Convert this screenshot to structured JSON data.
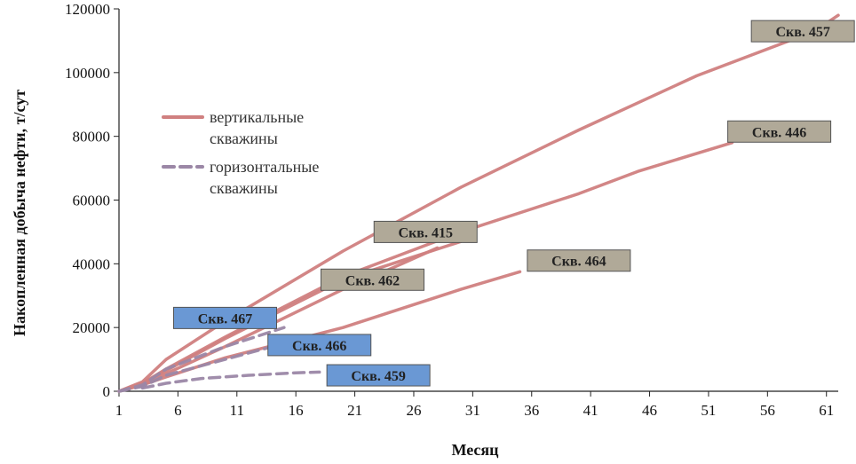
{
  "chart_data": {
    "type": "line",
    "xlabel": "Месяц",
    "ylabel": "Накопленная добыча нефти, т/сут",
    "xlim": [
      1,
      62
    ],
    "ylim": [
      0,
      120000
    ],
    "x_ticks": [
      1,
      6,
      11,
      16,
      21,
      26,
      31,
      36,
      41,
      46,
      51,
      56,
      61
    ],
    "y_ticks": [
      0,
      20000,
      40000,
      60000,
      80000,
      100000,
      120000
    ],
    "legend": {
      "placement": "upper-left",
      "entries": [
        {
          "label": "вертикальные скважины",
          "line1": "вертикальные",
          "line2": "скважины",
          "style": "solid",
          "color": "#d08080"
        },
        {
          "label": "горизонтальные скважины",
          "line1": "горизонтальные",
          "line2": "скважины",
          "style": "dashed",
          "color": "#9b87a6"
        }
      ]
    },
    "series": [
      {
        "name": "Скв. 457",
        "style": "solid",
        "color": "#d08080",
        "x": [
          1,
          3,
          5,
          10,
          20,
          30,
          40,
          50,
          60,
          62
        ],
        "y": [
          0,
          3000,
          10000,
          22000,
          44000,
          64000,
          82000,
          99000,
          113000,
          118000
        ],
        "label_box": "#b0a998",
        "label_at": [
          59,
          113000
        ]
      },
      {
        "name": "Скв. 446",
        "style": "solid",
        "color": "#d08080",
        "x": [
          1,
          3,
          5,
          10,
          20,
          30,
          40,
          45,
          53
        ],
        "y": [
          0,
          2500,
          7000,
          17000,
          36000,
          50000,
          62000,
          69000,
          78000
        ],
        "label_box": "#b0a998",
        "label_at": [
          57,
          81500
        ]
      },
      {
        "name": "Скв. 415",
        "style": "solid",
        "color": "#d08080",
        "x": [
          1,
          3,
          5,
          10,
          20,
          25,
          30
        ],
        "y": [
          0,
          2500,
          6500,
          16500,
          35000,
          41000,
          47000
        ],
        "label_box": "#b0a998",
        "label_at": [
          27,
          50000
        ]
      },
      {
        "name": "Скв. 462",
        "style": "solid",
        "color": "#d08080",
        "x": [
          1,
          3,
          5,
          10,
          15,
          20,
          25,
          28
        ],
        "y": [
          0,
          2000,
          5500,
          14000,
          23000,
          32000,
          40000,
          45000
        ],
        "label_box": "#b0a998",
        "label_at": [
          22.5,
          35000
        ]
      },
      {
        "name": "Скв. 464",
        "style": "solid",
        "color": "#d08080",
        "x": [
          1,
          3,
          5,
          10,
          20,
          30,
          35
        ],
        "y": [
          0,
          2000,
          4500,
          10500,
          20000,
          32000,
          37500
        ],
        "label_box": "#b0a998",
        "label_at": [
          40,
          41000
        ]
      },
      {
        "name": "Скв. 467",
        "style": "dashed",
        "color": "#9b87a6",
        "x": [
          1,
          3,
          5,
          10,
          15
        ],
        "y": [
          0,
          2000,
          7000,
          14000,
          20000
        ],
        "label_box": "#6a98d4",
        "label_at": [
          10,
          23000
        ]
      },
      {
        "name": "Скв. 466",
        "style": "dashed",
        "color": "#9b87a6",
        "x": [
          1,
          3,
          5,
          10,
          15
        ],
        "y": [
          0,
          1500,
          5000,
          10000,
          15000
        ],
        "label_box": "#6a98d4",
        "label_at": [
          18,
          14500
        ]
      },
      {
        "name": "Скв. 459",
        "style": "dashed",
        "color": "#9b87a6",
        "x": [
          3,
          5,
          8,
          12,
          16,
          18
        ],
        "y": [
          1000,
          2500,
          4000,
          5000,
          5800,
          6000
        ],
        "label_box": "#6a98d4",
        "label_at": [
          23,
          5000
        ]
      }
    ]
  }
}
